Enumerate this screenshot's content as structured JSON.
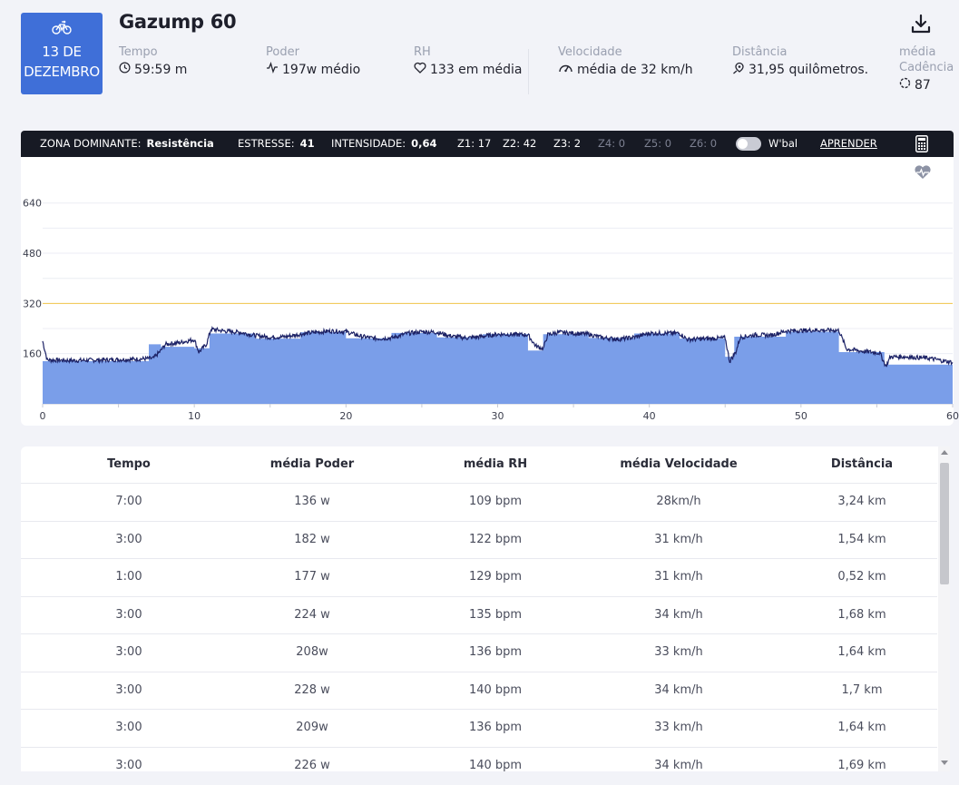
{
  "workout": {
    "date_line1": "13 DE",
    "date_line2": "DEZEMBRO",
    "title": "Gazump 60"
  },
  "metrics": {
    "time": {
      "label": "Tempo",
      "value": "59:59 m"
    },
    "power": {
      "label": "Poder",
      "value": "197w médio"
    },
    "hr": {
      "label": "RH",
      "value": "133 em média"
    },
    "speed": {
      "label": "Velocidade",
      "value": "média de 32 km/h"
    },
    "distance": {
      "label": "Distância",
      "value": "31,95 quilômetros."
    },
    "cadence": {
      "label_line1": "média",
      "label_line2": "Cadência",
      "value": "87"
    }
  },
  "zonebar": {
    "dominant_label": "ZONA DOMINANTE:",
    "dominant_value": "Resistência",
    "stress_label": "ESTRESSE:",
    "stress_value": "41",
    "intensity_label": "INTENSIDADE:",
    "intensity_value": "0,64",
    "z1": "Z1: 17",
    "z2": "Z2: 42",
    "z3": "Z3: 2",
    "z4": "Z4: 0",
    "z5": "Z5: 0",
    "z6": "Z6: 0",
    "wbal_label": "W'bal",
    "wbal_on": false,
    "learn": "APRENDER"
  },
  "colors": {
    "accent": "#3f6fd8",
    "area_fill": "#7399e8",
    "power_line": "#1c2266",
    "ftp_line": "#f2c64a",
    "dark_bar": "#171a24"
  },
  "chart_data": {
    "type": "area",
    "xlim": [
      0,
      60
    ],
    "ylim": [
      0,
      700
    ],
    "x_ticks": [
      "0",
      "10",
      "20",
      "30",
      "40",
      "50",
      "60"
    ],
    "y_ticks": [
      "160",
      "320",
      "480",
      "640"
    ],
    "reference_line": 320,
    "target_power_steps": [
      {
        "x0": 0,
        "x1": 7,
        "y": 136
      },
      {
        "x0": 7,
        "x1": 7.8,
        "y": 190
      },
      {
        "x0": 7.8,
        "x1": 10,
        "y": 182
      },
      {
        "x0": 10,
        "x1": 11,
        "y": 177
      },
      {
        "x0": 11,
        "x1": 14,
        "y": 224
      },
      {
        "x0": 14,
        "x1": 17,
        "y": 208
      },
      {
        "x0": 17,
        "x1": 20,
        "y": 228
      },
      {
        "x0": 20,
        "x1": 23,
        "y": 209
      },
      {
        "x0": 23,
        "x1": 26,
        "y": 226
      },
      {
        "x0": 26,
        "x1": 29,
        "y": 212
      },
      {
        "x0": 29,
        "x1": 32,
        "y": 222
      },
      {
        "x0": 32,
        "x1": 33,
        "y": 170
      },
      {
        "x0": 33,
        "x1": 36,
        "y": 222
      },
      {
        "x0": 36,
        "x1": 39,
        "y": 210
      },
      {
        "x0": 39,
        "x1": 42,
        "y": 224
      },
      {
        "x0": 42,
        "x1": 45,
        "y": 208
      },
      {
        "x0": 45,
        "x1": 45.6,
        "y": 150
      },
      {
        "x0": 45.6,
        "x1": 49,
        "y": 214
      },
      {
        "x0": 49,
        "x1": 52.5,
        "y": 230
      },
      {
        "x0": 52.5,
        "x1": 55.5,
        "y": 165
      },
      {
        "x0": 55.5,
        "x1": 60,
        "y": 125
      }
    ],
    "actual_power": [
      [
        0,
        200
      ],
      [
        0.3,
        140
      ],
      [
        2,
        138
      ],
      [
        4,
        140
      ],
      [
        6,
        142
      ],
      [
        7.3,
        145
      ],
      [
        7.8,
        170
      ],
      [
        8.1,
        190
      ],
      [
        9,
        195
      ],
      [
        10,
        205
      ],
      [
        10.3,
        165
      ],
      [
        10.8,
        190
      ],
      [
        11.1,
        238
      ],
      [
        12,
        232
      ],
      [
        13,
        228
      ],
      [
        14,
        218
      ],
      [
        15,
        212
      ],
      [
        16,
        214
      ],
      [
        17,
        222
      ],
      [
        18,
        228
      ],
      [
        19,
        232
      ],
      [
        20,
        230
      ],
      [
        21,
        215
      ],
      [
        22,
        208
      ],
      [
        23,
        210
      ],
      [
        24,
        224
      ],
      [
        25,
        230
      ],
      [
        26,
        228
      ],
      [
        27,
        215
      ],
      [
        28,
        210
      ],
      [
        29,
        215
      ],
      [
        30,
        222
      ],
      [
        32,
        220
      ],
      [
        32.5,
        185
      ],
      [
        33,
        175
      ],
      [
        33.3,
        220
      ],
      [
        34,
        228
      ],
      [
        35,
        225
      ],
      [
        36,
        222
      ],
      [
        37,
        210
      ],
      [
        38,
        206
      ],
      [
        39,
        212
      ],
      [
        40,
        225
      ],
      [
        42,
        225
      ],
      [
        42.5,
        205
      ],
      [
        44,
        208
      ],
      [
        45,
        210
      ],
      [
        45.3,
        135
      ],
      [
        45.7,
        165
      ],
      [
        46,
        212
      ],
      [
        47,
        220
      ],
      [
        48,
        218
      ],
      [
        49,
        232
      ],
      [
        51,
        235
      ],
      [
        52.5,
        234
      ],
      [
        53,
        175
      ],
      [
        54,
        168
      ],
      [
        55.2,
        162
      ],
      [
        55.6,
        120
      ],
      [
        55.9,
        150
      ],
      [
        57,
        150
      ],
      [
        58.5,
        145
      ],
      [
        59.4,
        137
      ],
      [
        60,
        132
      ]
    ]
  },
  "table": {
    "headers": [
      "Tempo",
      "média Poder",
      "média RH",
      "média Velocidade",
      "Distância"
    ],
    "rows": [
      [
        "7:00",
        "136 w",
        "109 bpm",
        "28km/h",
        "3,24 km"
      ],
      [
        "3:00",
        "182 w",
        "122 bpm",
        "31 km/h",
        "1,54 km"
      ],
      [
        "1:00",
        "177 w",
        "129 bpm",
        "31 km/h",
        "0,52 km"
      ],
      [
        "3:00",
        "224 w",
        "135 bpm",
        "34 km/h",
        "1,68 km"
      ],
      [
        "3:00",
        "208w",
        "136 bpm",
        "33 km/h",
        "1,64 km"
      ],
      [
        "3:00",
        "228 w",
        "140 bpm",
        "34 km/h",
        "1,7 km"
      ],
      [
        "3:00",
        "209w",
        "136 bpm",
        "33 km/h",
        "1,64 km"
      ],
      [
        "3:00",
        "226 w",
        "140 bpm",
        "34 km/h",
        "1,69 km"
      ]
    ]
  },
  "icons": {
    "workout_type": "bike-icon",
    "download": "download-icon",
    "time": "clock-icon",
    "power": "pulse-icon",
    "hr": "heart-icon",
    "speed": "speedometer-icon",
    "distance": "map-pin-icon",
    "cadence": "cadence-icon",
    "calculator": "calculator-icon",
    "chart_hr_toggle": "heart-rate-icon"
  }
}
